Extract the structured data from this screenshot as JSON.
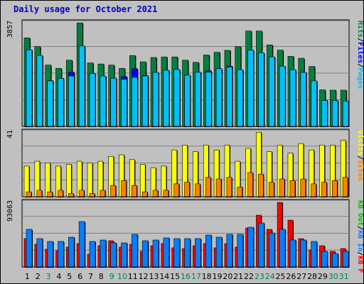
{
  "title": "Daily usage for October 2021",
  "colors": {
    "hits": "#008040",
    "files": "#0000ff",
    "pages": "#00c0ff",
    "visits": "#ffff00",
    "sites": "#ff8000",
    "kb_f": "#ff0000",
    "kb_in": "#0080ff",
    "kb_out": "#00c000",
    "weekday": "#000000",
    "weekend": "#00805c",
    "panel_bg": "#c0c0c0",
    "title": "#0000c0"
  },
  "chart_data": [
    {
      "type": "bar",
      "panel": "hits",
      "ymax_label": "3857",
      "ylim": [
        0,
        3857
      ],
      "legend": [
        "Pages",
        "/",
        "Files",
        "/",
        "Hits"
      ],
      "categories": [
        "1",
        "2",
        "3",
        "4",
        "5",
        "6",
        "7",
        "8",
        "9",
        "10",
        "11",
        "12",
        "13",
        "14",
        "15",
        "16",
        "17",
        "18",
        "19",
        "20",
        "21",
        "22",
        "23",
        "24",
        "25",
        "26",
        "27",
        "28",
        "29",
        "30",
        "31"
      ],
      "series": [
        {
          "name": "Hits",
          "values": [
            3250,
            2930,
            2250,
            2130,
            2430,
            3800,
            2330,
            2290,
            2250,
            2130,
            2600,
            2370,
            2530,
            2550,
            2550,
            2430,
            2350,
            2620,
            2720,
            2790,
            2930,
            3500,
            3500,
            2990,
            2800,
            2570,
            2500,
            2200,
            1340,
            1330,
            1330
          ]
        },
        {
          "name": "Files",
          "values": [
            2810,
            2600,
            1680,
            1760,
            1990,
            2950,
            1940,
            1850,
            1770,
            1830,
            2120,
            1870,
            1980,
            2060,
            2090,
            1880,
            1990,
            2040,
            2120,
            2210,
            2080,
            2800,
            2700,
            2550,
            2210,
            2080,
            1980,
            1670,
            950,
            950,
            930
          ]
        },
        {
          "name": "Pages",
          "values": [
            2810,
            2600,
            1670,
            1760,
            1850,
            2950,
            1940,
            1850,
            1770,
            1730,
            1800,
            1850,
            1980,
            2060,
            2090,
            1880,
            1990,
            1990,
            2120,
            2180,
            2080,
            2800,
            2700,
            2550,
            2210,
            2080,
            1980,
            1670,
            950,
            950,
            930
          ]
        }
      ]
    },
    {
      "type": "bar",
      "panel": "visits",
      "ymax_label": "41",
      "ylim": [
        0,
        41
      ],
      "legend": [
        "Sites",
        "/",
        "Visits"
      ],
      "categories": [
        "1",
        "2",
        "3",
        "4",
        "5",
        "6",
        "7",
        "8",
        "9",
        "10",
        "11",
        "12",
        "13",
        "14",
        "15",
        "16",
        "17",
        "18",
        "19",
        "20",
        "21",
        "22",
        "23",
        "24",
        "25",
        "26",
        "27",
        "28",
        "29",
        "30",
        "31"
      ],
      "series": [
        {
          "name": "Visits",
          "values": [
            19,
            22,
            21,
            19,
            20,
            22,
            21,
            22,
            25,
            26,
            23,
            20,
            18,
            19,
            29,
            32,
            28,
            32,
            29,
            32,
            22,
            30,
            40,
            28,
            32,
            27,
            33,
            29,
            32,
            32,
            35
          ]
        },
        {
          "name": "Sites",
          "values": [
            3,
            4,
            3,
            4,
            2,
            4,
            2,
            4,
            7,
            10,
            7,
            3,
            4,
            4,
            8,
            9,
            8,
            12,
            11,
            12,
            6,
            15,
            14,
            9,
            11,
            10,
            11,
            8,
            9,
            10,
            12
          ]
        }
      ]
    },
    {
      "type": "bar",
      "panel": "kbytes",
      "ymax_label": "93063",
      "ylim": [
        0,
        93063
      ],
      "legend": [
        "KB F",
        "/",
        "KB In",
        "/",
        "KB Out"
      ],
      "categories": [
        "1",
        "2",
        "3",
        "4",
        "5",
        "6",
        "7",
        "8",
        "9",
        "10",
        "11",
        "12",
        "13",
        "14",
        "15",
        "16",
        "17",
        "18",
        "19",
        "20",
        "21",
        "22",
        "23",
        "24",
        "25",
        "26",
        "27",
        "28",
        "29",
        "30",
        "31"
      ],
      "series": [
        {
          "name": "KB F",
          "values": [
            40000,
            32000,
            25000,
            23000,
            28000,
            33000,
            18000,
            30000,
            37000,
            28000,
            32000,
            22000,
            30000,
            33000,
            27000,
            26000,
            30000,
            33000,
            27000,
            33000,
            28000,
            55000,
            73000,
            53000,
            91000,
            66000,
            40000,
            24000,
            30000,
            22000,
            26000
          ]
        },
        {
          "name": "KB In",
          "values": [
            53000,
            40000,
            36000,
            36000,
            42000,
            64000,
            36000,
            38000,
            34000,
            34000,
            46000,
            37000,
            38000,
            41000,
            40000,
            40000,
            40000,
            45000,
            42000,
            46000,
            46000,
            56000,
            62000,
            48000,
            53000,
            38000,
            38000,
            36000,
            22000,
            19000,
            22000
          ]
        }
      ]
    }
  ],
  "days": [
    {
      "label": "1",
      "weekend": false
    },
    {
      "label": "2",
      "weekend": false
    },
    {
      "label": "3",
      "weekend": true
    },
    {
      "label": "4",
      "weekend": false
    },
    {
      "label": "5",
      "weekend": false
    },
    {
      "label": "6",
      "weekend": false
    },
    {
      "label": "7",
      "weekend": false
    },
    {
      "label": "8",
      "weekend": false
    },
    {
      "label": "9",
      "weekend": true
    },
    {
      "label": "10",
      "weekend": true
    },
    {
      "label": "11",
      "weekend": false
    },
    {
      "label": "12",
      "weekend": false
    },
    {
      "label": "13",
      "weekend": false
    },
    {
      "label": "14",
      "weekend": false
    },
    {
      "label": "15",
      "weekend": false
    },
    {
      "label": "16",
      "weekend": true
    },
    {
      "label": "17",
      "weekend": true
    },
    {
      "label": "18",
      "weekend": false
    },
    {
      "label": "19",
      "weekend": false
    },
    {
      "label": "20",
      "weekend": false
    },
    {
      "label": "21",
      "weekend": false
    },
    {
      "label": "22",
      "weekend": false
    },
    {
      "label": "23",
      "weekend": true
    },
    {
      "label": "24",
      "weekend": true
    },
    {
      "label": "25",
      "weekend": false
    },
    {
      "label": "26",
      "weekend": false
    },
    {
      "label": "27",
      "weekend": false
    },
    {
      "label": "28",
      "weekend": false
    },
    {
      "label": "29",
      "weekend": false
    },
    {
      "label": "30",
      "weekend": true
    },
    {
      "label": "31",
      "weekend": true
    }
  ]
}
